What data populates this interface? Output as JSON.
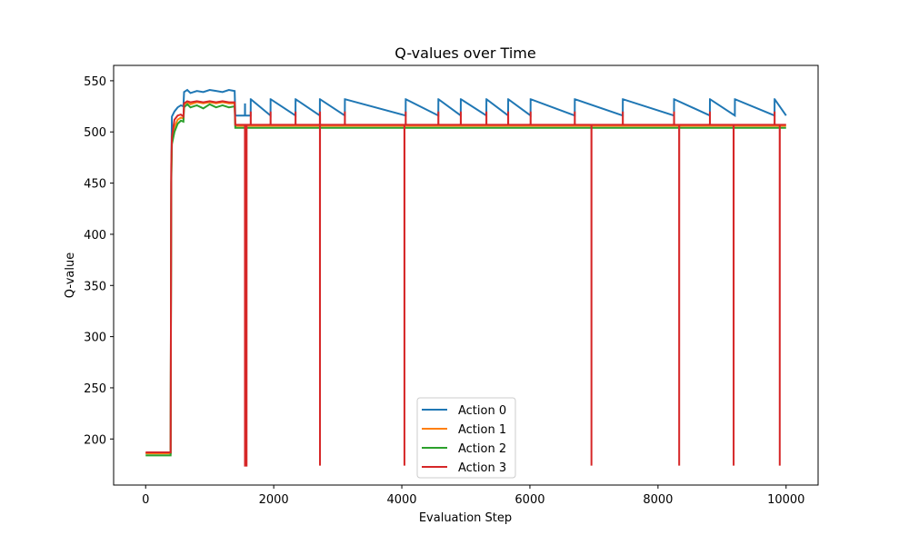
{
  "chart_data": {
    "type": "line",
    "title": "Q-values over Time",
    "xlabel": "Evaluation Step",
    "ylabel": "Q-value",
    "xlim": [
      -500,
      10500
    ],
    "ylim": [
      155,
      565
    ],
    "xticks": [
      0,
      2000,
      4000,
      6000,
      8000,
      10000
    ],
    "yticks": [
      200,
      250,
      300,
      350,
      400,
      450,
      500,
      550
    ],
    "grid": false,
    "legend": "lower-center",
    "series": [
      {
        "name": "Action 0",
        "color": "#1f77b4",
        "x": [
          0,
          390,
          400,
          410,
          450,
          500,
          550,
          590,
          600,
          650,
          700,
          800,
          900,
          1000,
          1100,
          1200,
          1300,
          1390,
          1400,
          1550,
          1551,
          1552,
          1553,
          1640,
          1641,
          1642,
          1950,
          1951,
          1952,
          2340,
          2341,
          2342,
          2720,
          2721,
          2722,
          3110,
          3111,
          3112,
          4060,
          4061,
          4062,
          4570,
          4571,
          4572,
          4920,
          4921,
          4922,
          5320,
          5321,
          5322,
          5660,
          5661,
          5662,
          6010,
          6011,
          6012,
          6700,
          6701,
          6702,
          7450,
          7451,
          7452,
          8250,
          8251,
          8252,
          8810,
          8811,
          8812,
          9200,
          9201,
          9202,
          9820,
          9821,
          9822,
          10000
        ],
        "y": [
          186,
          186,
          460,
          515,
          520,
          524,
          526,
          525,
          539,
          541,
          538,
          540,
          539,
          541,
          540,
          539,
          541,
          540,
          516,
          516,
          527,
          527,
          516,
          516,
          532,
          532,
          516,
          532,
          532,
          516,
          532,
          532,
          516,
          532,
          532,
          516,
          532,
          532,
          516,
          532,
          532,
          516,
          532,
          532,
          516,
          532,
          532,
          516,
          532,
          532,
          516,
          532,
          532,
          516,
          532,
          532,
          516,
          532,
          532,
          516,
          532,
          532,
          516,
          532,
          532,
          516,
          532,
          532,
          516,
          532,
          532,
          516,
          532,
          532,
          516
        ]
      },
      {
        "name": "Action 1",
        "color": "#ff7f0e",
        "x": [
          0,
          390,
          400,
          410,
          450,
          500,
          550,
          590,
          600,
          650,
          700,
          800,
          900,
          1000,
          1100,
          1200,
          1300,
          1390,
          1400,
          10000
        ],
        "y": [
          186,
          186,
          455,
          490,
          505,
          512,
          514,
          513,
          527,
          529,
          527,
          529,
          528,
          529,
          528,
          529,
          528,
          528,
          506,
          506
        ]
      },
      {
        "name": "Action 2",
        "color": "#2ca02c",
        "x": [
          0,
          390,
          400,
          410,
          450,
          500,
          550,
          590,
          600,
          650,
          700,
          800,
          900,
          1000,
          1100,
          1200,
          1300,
          1390,
          1400,
          10000
        ],
        "y": [
          184,
          184,
          450,
          488,
          500,
          508,
          511,
          510,
          524,
          527,
          524,
          526,
          523,
          527,
          524,
          526,
          524,
          525,
          504,
          504
        ]
      },
      {
        "name": "Action 3",
        "color": "#d62728",
        "x": [
          0,
          390,
          400,
          410,
          450,
          500,
          550,
          590,
          600,
          650,
          700,
          800,
          900,
          1000,
          1100,
          1200,
          1300,
          1390,
          1400,
          1550,
          1551,
          1552,
          1553,
          1574,
          1575,
          1576,
          1577,
          1640,
          1641,
          1642,
          1950,
          1951,
          1952,
          2340,
          2341,
          2342,
          2720,
          2721,
          2722,
          2723,
          2724,
          3110,
          3111,
          3112,
          4040,
          4041,
          4042,
          4060,
          4061,
          4062,
          4570,
          4571,
          4572,
          4920,
          4921,
          4922,
          5320,
          5321,
          5322,
          5660,
          5661,
          5662,
          6010,
          6011,
          6012,
          6700,
          6701,
          6702,
          6960,
          6961,
          6962,
          7450,
          7451,
          7452,
          8250,
          8251,
          8252,
          8330,
          8331,
          8332,
          8810,
          8811,
          8812,
          9180,
          9181,
          9182,
          9820,
          9821,
          9822,
          9900,
          9901,
          9902,
          10000
        ],
        "y": [
          187,
          187,
          468,
          495,
          512,
          516,
          517,
          515,
          528,
          530,
          529,
          530,
          529,
          530,
          529,
          530,
          529,
          529,
          507,
          507,
          174,
          174,
          507,
          507,
          174,
          174,
          507,
          507,
          520,
          507,
          507,
          520,
          507,
          507,
          520,
          507,
          507,
          520,
          174,
          520,
          507,
          507,
          520,
          507,
          507,
          174,
          507,
          507,
          520,
          507,
          507,
          520,
          507,
          507,
          520,
          507,
          507,
          520,
          507,
          507,
          520,
          507,
          507,
          520,
          507,
          507,
          520,
          507,
          507,
          174,
          507,
          507,
          520,
          507,
          507,
          520,
          507,
          507,
          174,
          507,
          507,
          520,
          507,
          507,
          174,
          507,
          507,
          520,
          507,
          507,
          174,
          507,
          507
        ]
      }
    ]
  }
}
